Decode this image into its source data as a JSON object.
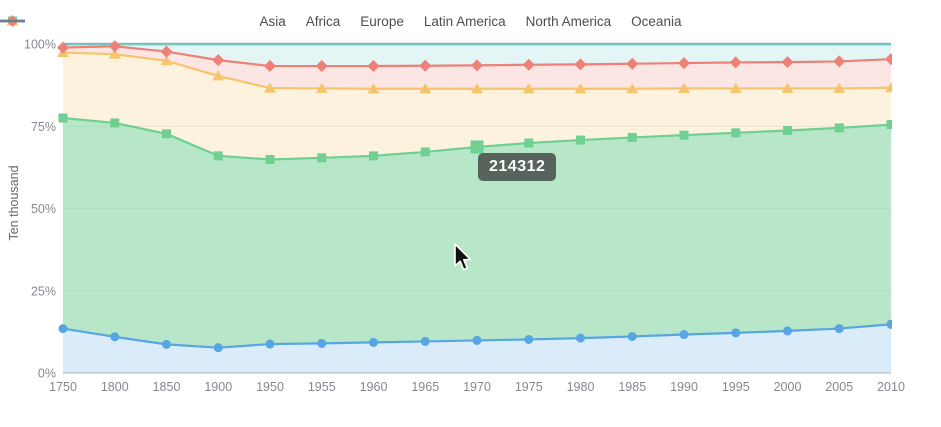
{
  "chart_data": {
    "type": "area",
    "stacked_percent": true,
    "title": "",
    "xlabel": "",
    "ylabel": "Ten thousand",
    "ylim": [
      0,
      100
    ],
    "grid": true,
    "legend_position": "top",
    "y_ticks": [
      "0%",
      "25%",
      "50%",
      "75%",
      "100%"
    ],
    "y_tick_values": [
      0,
      25,
      50,
      75,
      100
    ],
    "categories": [
      "1750",
      "1800",
      "1850",
      "1900",
      "1950",
      "1955",
      "1960",
      "1965",
      "1970",
      "1975",
      "1980",
      "1985",
      "1990",
      "1995",
      "2000",
      "2005",
      "2010"
    ],
    "series": [
      {
        "name": "Asia",
        "symbol": "circle",
        "color": "#57a5e3",
        "fill": "rgba(87,165,227,0.22)",
        "values": [
          13.5,
          11.0,
          8.7,
          7.7,
          8.8,
          9.0,
          9.3,
          9.6,
          9.9,
          10.2,
          10.6,
          11.1,
          11.7,
          12.2,
          12.8,
          13.5,
          14.8
        ]
      },
      {
        "name": "Africa",
        "symbol": "square",
        "color": "#6fd092",
        "fill": "rgba(111,208,146,0.5)",
        "values": [
          64.0,
          65.0,
          64.0,
          58.3,
          56.1,
          56.4,
          56.7,
          57.6,
          58.8,
          59.7,
          60.2,
          60.5,
          60.6,
          60.8,
          60.9,
          61.0,
          60.7
        ]
      },
      {
        "name": "Europe",
        "symbol": "triangle",
        "color": "#f6c46a",
        "fill": "rgba(246,196,106,0.22)",
        "values": [
          19.9,
          20.9,
          22.2,
          24.3,
          21.7,
          21.1,
          20.4,
          19.2,
          17.7,
          16.5,
          15.6,
          14.8,
          14.2,
          13.5,
          12.8,
          12.0,
          11.2
        ]
      },
      {
        "name": "Latin America",
        "symbol": "diamond",
        "color": "#ed8077",
        "fill": "rgba(237,128,119,0.2)",
        "values": [
          1.5,
          2.4,
          2.8,
          4.8,
          6.7,
          6.8,
          6.9,
          7.0,
          7.1,
          7.3,
          7.4,
          7.6,
          7.7,
          7.9,
          8.0,
          8.2,
          8.7
        ]
      },
      {
        "name": "North America",
        "symbol": "line",
        "color": "#72cfc6",
        "fill": "rgba(114,207,198,0.2)",
        "values": [
          1.0,
          0.6,
          2.2,
          4.8,
          6.6,
          6.6,
          6.6,
          6.5,
          6.4,
          6.2,
          6.1,
          5.9,
          5.7,
          5.5,
          5.4,
          5.2,
          4.5
        ]
      },
      {
        "name": "Oceania",
        "symbol": "line",
        "color": "#6e7b91",
        "fill": "rgba(110,123,145,0.2)",
        "values": [
          0.1,
          0.1,
          0.1,
          0.1,
          0.1,
          0.1,
          0.1,
          0.1,
          0.1,
          0.1,
          0.1,
          0.1,
          0.1,
          0.1,
          0.1,
          0.1,
          0.1
        ]
      }
    ],
    "hover": {
      "series": "Africa",
      "category": "1970"
    },
    "style": {
      "grid_color": "#ececec",
      "axis_line_color": "#b5b5b5",
      "tick_label_color": "#85888e",
      "legend_text_color": "#4d4d4d",
      "tooltip_bg": "rgba(50,50,50,0.72)"
    }
  },
  "tooltip": {
    "text": "214312"
  }
}
